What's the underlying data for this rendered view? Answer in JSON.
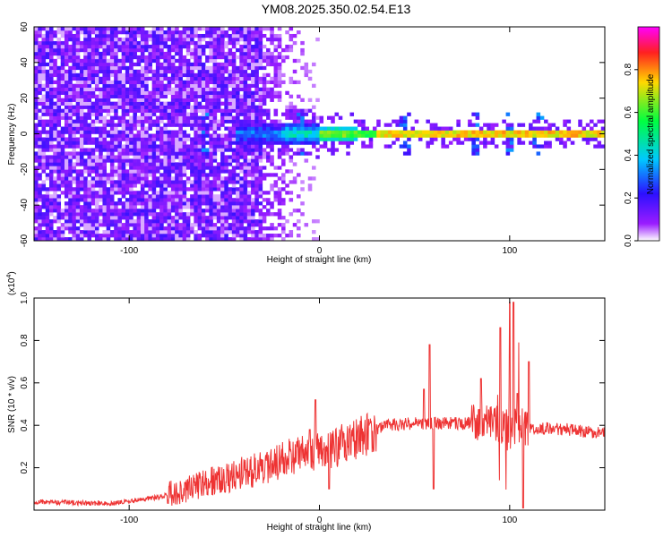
{
  "figure": {
    "title": "YM08.2025.350.02.54.E13"
  },
  "chart_data": [
    {
      "type": "heatmap",
      "name": "spectrogram",
      "xlabel": "Height of straight line (km)",
      "ylabel": "Frequency (Hz)",
      "xlim": [
        -150,
        150
      ],
      "ylim": [
        -60,
        60
      ],
      "xticks": [
        -100,
        0,
        100
      ],
      "yticks": [
        -60,
        -40,
        -20,
        0,
        20,
        40,
        60
      ],
      "colorbar": {
        "label": "Normalized spectral amplitude",
        "range": [
          0,
          1
        ],
        "ticks": [
          0.0,
          0.2,
          0.4,
          0.6,
          0.8
        ],
        "colormap": [
          "#ffffff",
          "#9a1cff",
          "#2c10ff",
          "#00c8ff",
          "#00ff40",
          "#ffd800",
          "#ff2020",
          "#ff00ff"
        ]
      },
      "features": {
        "noise_floor_extent_km": [
          -150,
          -30
        ],
        "noise_fade_extent_km": [
          -30,
          0
        ],
        "band_center_hz": 0,
        "strong_band_extent_km": [
          0,
          150
        ],
        "bursts_km": [
          -60,
          -10,
          45,
          82,
          100,
          115
        ]
      }
    },
    {
      "type": "line",
      "name": "snr",
      "xlabel": "Height of straight line (km)",
      "ylabel": "SNR (10 * v/v)",
      "y_multiplier": "(x10",
      "y_multiplier_exp": "4",
      "y_multiplier_close": ")",
      "xlim": [
        -150,
        150
      ],
      "ylim": [
        0,
        1.0
      ],
      "xticks": [
        -100,
        0,
        100
      ],
      "yticks": [
        0.2,
        0.4,
        0.6,
        0.8,
        1.0
      ],
      "series": [
        {
          "color": "#ee3333",
          "envelope": [
            [
              -150,
              0.04
            ],
            [
              -110,
              0.03
            ],
            [
              -85,
              0.06
            ],
            [
              -70,
              0.1
            ],
            [
              -50,
              0.15
            ],
            [
              -30,
              0.2
            ],
            [
              -15,
              0.25
            ],
            [
              0,
              0.27
            ],
            [
              8,
              0.3
            ],
            [
              20,
              0.34
            ],
            [
              35,
              0.4
            ],
            [
              50,
              0.41
            ],
            [
              70,
              0.41
            ],
            [
              90,
              0.41
            ],
            [
              110,
              0.39
            ],
            [
              130,
              0.38
            ],
            [
              150,
              0.36
            ]
          ],
          "spikes": [
            [
              -5,
              0.38
            ],
            [
              -2,
              0.52
            ],
            [
              5,
              0.1
            ],
            [
              55,
              0.57
            ],
            [
              58,
              0.78
            ],
            [
              60,
              0.1
            ],
            [
              85,
              0.62
            ],
            [
              95,
              0.86
            ],
            [
              100,
              0.98
            ],
            [
              102,
              0.98
            ],
            [
              104,
              0.55
            ],
            [
              107,
              0.0
            ],
            [
              110,
              0.7
            ]
          ]
        }
      ]
    }
  ]
}
